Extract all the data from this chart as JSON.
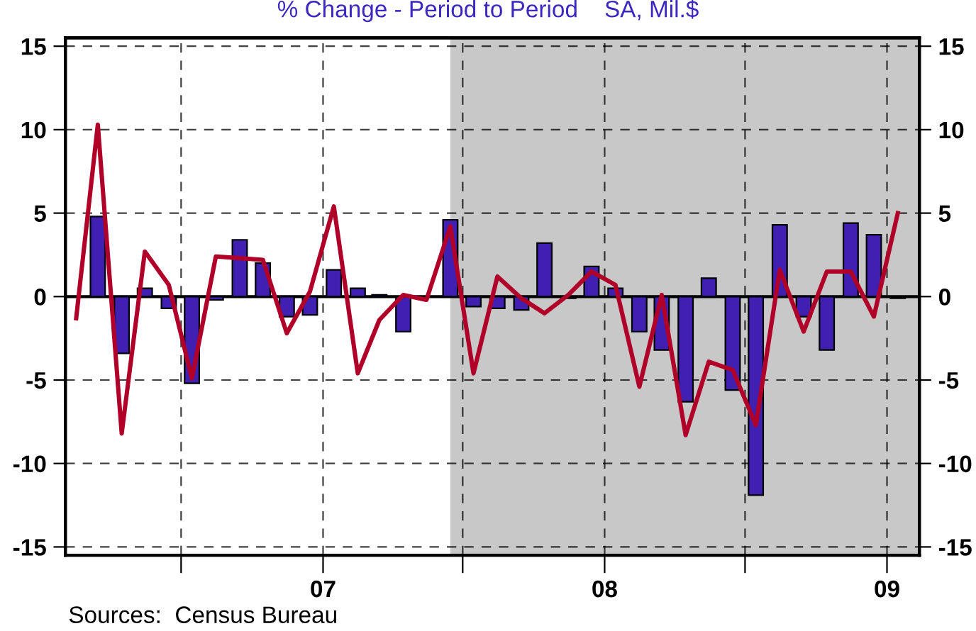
{
  "chart_data": {
    "type": "bar",
    "title": "% Change - Period to Period    SA, Mil.$",
    "series": [
      {
        "color": "#4020b0",
        "x": [
          "2006-03-15",
          "2006-04-15",
          "2006-05-15",
          "2006-06-15",
          "2006-07-15",
          "2006-08-15",
          "2006-09-15",
          "2006-10-15",
          "2006-11-15",
          "2006-12-15",
          "2007-01-15",
          "2007-02-15",
          "2007-03-15",
          "2007-04-15",
          "2007-05-15",
          "2007-06-15",
          "2007-07-15",
          "2007-08-15",
          "2007-09-15",
          "2007-10-15",
          "2007-11-15",
          "2007-12-15",
          "2008-01-15",
          "2008-02-15",
          "2008-03-15",
          "2008-04-15",
          "2008-05-15",
          "2008-06-15",
          "2008-07-15",
          "2008-08-15",
          "2008-09-15",
          "2008-10-15",
          "2008-11-15",
          "2008-12-15",
          "2009-01-15"
        ],
        "values": [
          4.8,
          -3.4,
          0.5,
          -0.7,
          -5.2,
          -0.2,
          3.4,
          2.0,
          -1.2,
          -1.1,
          1.6,
          0.5,
          0.1,
          -2.1,
          null,
          4.6,
          -0.6,
          -0.7,
          -0.8,
          3.2,
          -0.1,
          1.8,
          0.5,
          -2.1,
          -3.2,
          -6.3,
          1.1,
          -5.6,
          -11.9,
          4.3,
          -1.2,
          -3.2,
          4.4,
          3.7,
          -0.1
        ]
      },
      {
        "type": "line",
        "color": "#b0002a",
        "x": [
          "2006-02-15",
          "2006-03-15",
          "2006-04-15",
          "2006-05-15",
          "2006-06-15",
          "2006-07-15",
          "2006-08-15",
          "2006-09-15",
          "2006-10-15",
          "2006-11-15",
          "2006-12-15",
          "2007-01-15",
          "2007-02-15",
          "2007-03-15",
          "2007-04-15",
          "2007-05-15",
          "2007-06-15",
          "2007-07-15",
          "2007-08-15",
          "2007-09-15",
          "2007-10-15",
          "2007-11-15",
          "2007-12-15",
          "2008-01-15",
          "2008-02-15",
          "2008-03-15",
          "2008-04-15",
          "2008-05-15",
          "2008-06-15",
          "2008-07-15",
          "2008-08-15",
          "2008-09-15",
          "2008-10-15",
          "2008-11-15",
          "2008-12-15",
          "2009-01-15"
        ],
        "values": [
          -1.3,
          10.3,
          -8.2,
          2.7,
          0.7,
          -4.9,
          2.4,
          2.3,
          2.2,
          -2.2,
          0.3,
          5.4,
          -4.6,
          -1.4,
          0.1,
          -0.2,
          4.2,
          -4.6,
          1.2,
          -0.1,
          -1.0,
          0.1,
          1.5,
          0.7,
          -5.4,
          0.1,
          -8.3,
          -3.9,
          -4.4,
          -7.7,
          1.6,
          -2.1,
          1.5,
          1.5,
          -1.2,
          5.0
        ]
      }
    ],
    "xlim": [
      "2006-02-01",
      "2009-02-12"
    ],
    "xticks": [
      {
        "value": "2006-07-01",
        "label": null
      },
      {
        "value": "2007-01-01",
        "label": "07"
      },
      {
        "value": "2007-07-01",
        "label": null
      },
      {
        "value": "2008-01-01",
        "label": "08"
      },
      {
        "value": "2008-07-01",
        "label": null
      },
      {
        "value": "2009-01-01",
        "label": "09"
      }
    ],
    "ylim": [
      -15.5,
      15.5
    ],
    "yticks": [
      -15,
      -10,
      -5,
      0,
      5,
      10,
      15
    ],
    "y2lim": [
      -15.5,
      15.5
    ],
    "y2ticks": [
      -15,
      -10,
      -5,
      0,
      5,
      10,
      15
    ],
    "bands": [
      {
        "axis": "x",
        "from": "2007-06-15",
        "to": "2009-02-12",
        "color": "#c8c8c8"
      }
    ],
    "ref_lines": [
      {
        "axis": "y",
        "value": 0,
        "color": "#000000",
        "line_style": "solid"
      }
    ],
    "grid": true,
    "annotations": [
      "Sources:  Census Bureau"
    ]
  }
}
